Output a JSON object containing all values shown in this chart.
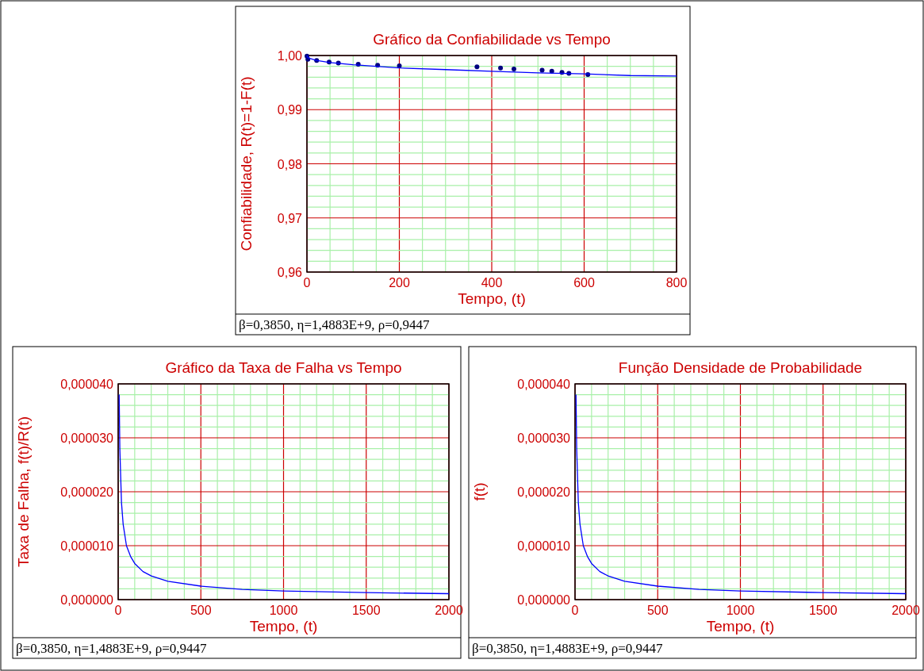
{
  "chart_data": [
    {
      "type": "scatter",
      "title": "Gráfico da Confiabilidade vs Tempo",
      "xlabel": "Tempo, (t)",
      "ylabel": "Confiabilidade, R(t)=1-F(t)",
      "annotations": [
        "β=0,3850, η=1,4883E+9, ρ=0,9447"
      ],
      "grid": true,
      "xlim": [
        0,
        800
      ],
      "ylim": [
        0.96,
        1
      ],
      "xticks": [
        0,
        {
          "value": 50,
          "label": null
        },
        {
          "value": 100,
          "label": null
        },
        {
          "value": 150,
          "label": null
        },
        200,
        {
          "value": 250,
          "label": null
        },
        {
          "value": 300,
          "label": null
        },
        {
          "value": 350,
          "label": null
        },
        400,
        {
          "value": 450,
          "label": null
        },
        {
          "value": 500,
          "label": null
        },
        {
          "value": 550,
          "label": null
        },
        600,
        {
          "value": 650,
          "label": null
        },
        {
          "value": 700,
          "label": null
        },
        {
          "value": 750,
          "label": null
        },
        800
      ],
      "yticks": [
        {
          "value": 0.96,
          "label": "0,96"
        },
        {
          "value": 0.962,
          "label": null
        },
        {
          "value": 0.964,
          "label": null
        },
        {
          "value": 0.966,
          "label": null
        },
        {
          "value": 0.968,
          "label": null
        },
        {
          "value": 0.97,
          "label": "0,97"
        },
        {
          "value": 0.972,
          "label": null
        },
        {
          "value": 0.974,
          "label": null
        },
        {
          "value": 0.976,
          "label": null
        },
        {
          "value": 0.978,
          "label": null
        },
        {
          "value": 0.98,
          "label": "0,98"
        },
        {
          "value": 0.982,
          "label": null
        },
        {
          "value": 0.984,
          "label": null
        },
        {
          "value": 0.986,
          "label": null
        },
        {
          "value": 0.988,
          "label": null
        },
        {
          "value": 0.99,
          "label": "0,99"
        },
        {
          "value": 0.992,
          "label": null
        },
        {
          "value": 0.994,
          "label": null
        },
        {
          "value": 0.996,
          "label": null
        },
        {
          "value": 0.998,
          "label": null
        },
        {
          "value": 1,
          "label": "1,00"
        }
      ],
      "series": [
        {
          "marker": "circle",
          "color": "#000080",
          "x": [
            0,
            2,
            21,
            48,
            68,
            111,
            153,
            200,
            368,
            419,
            448,
            509,
            530,
            552,
            567,
            608
          ],
          "values": [
            0.9999,
            0.9993,
            0.9991,
            0.9988,
            0.9986,
            0.9984,
            0.9982,
            0.9981,
            0.9979,
            0.9977,
            0.9975,
            0.9973,
            0.9971,
            0.9969,
            0.9967,
            0.9965
          ]
        },
        {
          "type": "line",
          "color": "#0000ff",
          "x": [
            0,
            1,
            5,
            20,
            50,
            100,
            200,
            300,
            400,
            500,
            600,
            700,
            800
          ],
          "values": [
            1,
            0.9997,
            0.9995,
            0.9991,
            0.9987,
            0.9983,
            0.9977,
            0.9974,
            0.9971,
            0.9968,
            0.9966,
            0.9963,
            0.9962
          ]
        }
      ]
    },
    {
      "type": "line",
      "title": "Gráfico da Taxa de Falha vs Tempo",
      "xlabel": "Tempo, (t)",
      "ylabel": "Taxa de Falha,  f(t)/R(t)",
      "annotations": [
        "β=0,3850, η=1,4883E+9, ρ=0,9447"
      ],
      "grid": true,
      "xlim": [
        0,
        2000
      ],
      "ylim": [
        0,
        4e-05
      ],
      "xticks": [
        0,
        {
          "value": 100,
          "label": null
        },
        {
          "value": 200,
          "label": null
        },
        {
          "value": 300,
          "label": null
        },
        {
          "value": 400,
          "label": null
        },
        500,
        {
          "value": 600,
          "label": null
        },
        {
          "value": 700,
          "label": null
        },
        {
          "value": 800,
          "label": null
        },
        {
          "value": 900,
          "label": null
        },
        1000,
        {
          "value": 1100,
          "label": null
        },
        {
          "value": 1200,
          "label": null
        },
        {
          "value": 1300,
          "label": null
        },
        {
          "value": 1400,
          "label": null
        },
        1500,
        {
          "value": 1600,
          "label": null
        },
        {
          "value": 1700,
          "label": null
        },
        {
          "value": 1800,
          "label": null
        },
        {
          "value": 1900,
          "label": null
        },
        2000
      ],
      "yticks": [
        {
          "value": 0,
          "label": "0,000000"
        },
        {
          "value": 2e-06,
          "label": null
        },
        {
          "value": 4e-06,
          "label": null
        },
        {
          "value": 6e-06,
          "label": null
        },
        {
          "value": 8e-06,
          "label": null
        },
        {
          "value": 1e-05,
          "label": "0,000010"
        },
        {
          "value": 1.2e-05,
          "label": null
        },
        {
          "value": 1.4e-05,
          "label": null
        },
        {
          "value": 1.6e-05,
          "label": null
        },
        {
          "value": 1.8e-05,
          "label": null
        },
        {
          "value": 2e-05,
          "label": "0,000020"
        },
        {
          "value": 2.2e-05,
          "label": null
        },
        {
          "value": 2.4e-05,
          "label": null
        },
        {
          "value": 2.6e-05,
          "label": null
        },
        {
          "value": 2.8e-05,
          "label": null
        },
        {
          "value": 3e-05,
          "label": "0,000030"
        },
        {
          "value": 3.2e-05,
          "label": null
        },
        {
          "value": 3.4e-05,
          "label": null
        },
        {
          "value": 3.6e-05,
          "label": null
        },
        {
          "value": 3.8e-05,
          "label": null
        },
        {
          "value": 4e-05,
          "label": "0,000040"
        }
      ],
      "series": [
        {
          "color": "#0000ff",
          "x": [
            6,
            10,
            20,
            30,
            50,
            75,
            100,
            150,
            200,
            300,
            500,
            750,
            1000,
            1500,
            2000
          ],
          "values": [
            3.8e-05,
            2.8e-05,
            1.8e-05,
            1.4e-05,
            1e-05,
            8e-06,
            6.7e-06,
            5.2e-06,
            4.4e-06,
            3.4e-06,
            2.5e-06,
            1.9e-06,
            1.6e-06,
            1.3e-06,
            1.1e-06
          ]
        }
      ]
    },
    {
      "type": "line",
      "title": "Função Densidade de Probabilidade",
      "xlabel": "Tempo, (t)",
      "ylabel": "f(t)",
      "annotations": [
        "β=0,3850, η=1,4883E+9, ρ=0,9447"
      ],
      "grid": true,
      "xlim": [
        0,
        2000
      ],
      "ylim": [
        0,
        4e-05
      ],
      "xticks": [
        0,
        {
          "value": 100,
          "label": null
        },
        {
          "value": 200,
          "label": null
        },
        {
          "value": 300,
          "label": null
        },
        {
          "value": 400,
          "label": null
        },
        500,
        {
          "value": 600,
          "label": null
        },
        {
          "value": 700,
          "label": null
        },
        {
          "value": 800,
          "label": null
        },
        {
          "value": 900,
          "label": null
        },
        1000,
        {
          "value": 1100,
          "label": null
        },
        {
          "value": 1200,
          "label": null
        },
        {
          "value": 1300,
          "label": null
        },
        {
          "value": 1400,
          "label": null
        },
        1500,
        {
          "value": 1600,
          "label": null
        },
        {
          "value": 1700,
          "label": null
        },
        {
          "value": 1800,
          "label": null
        },
        {
          "value": 1900,
          "label": null
        },
        2000
      ],
      "yticks": [
        {
          "value": 0,
          "label": "0,000000"
        },
        {
          "value": 2e-06,
          "label": null
        },
        {
          "value": 4e-06,
          "label": null
        },
        {
          "value": 6e-06,
          "label": null
        },
        {
          "value": 8e-06,
          "label": null
        },
        {
          "value": 1e-05,
          "label": "0,000010"
        },
        {
          "value": 1.2e-05,
          "label": null
        },
        {
          "value": 1.4e-05,
          "label": null
        },
        {
          "value": 1.6e-05,
          "label": null
        },
        {
          "value": 1.8e-05,
          "label": null
        },
        {
          "value": 2e-05,
          "label": "0,000020"
        },
        {
          "value": 2.2e-05,
          "label": null
        },
        {
          "value": 2.4e-05,
          "label": null
        },
        {
          "value": 2.6e-05,
          "label": null
        },
        {
          "value": 2.8e-05,
          "label": null
        },
        {
          "value": 3e-05,
          "label": "0,000030"
        },
        {
          "value": 3.2e-05,
          "label": null
        },
        {
          "value": 3.4e-05,
          "label": null
        },
        {
          "value": 3.6e-05,
          "label": null
        },
        {
          "value": 3.8e-05,
          "label": null
        },
        {
          "value": 4e-05,
          "label": "0,000040"
        }
      ],
      "series": [
        {
          "color": "#0000ff",
          "x": [
            6,
            10,
            20,
            30,
            50,
            75,
            100,
            150,
            200,
            300,
            500,
            750,
            1000,
            1500,
            2000
          ],
          "values": [
            3.8e-05,
            2.8e-05,
            1.8e-05,
            1.4e-05,
            1e-05,
            8e-06,
            6.7e-06,
            5.2e-06,
            4.4e-06,
            3.4e-06,
            2.5e-06,
            1.9e-06,
            1.6e-06,
            1.3e-06,
            1.1e-06
          ]
        }
      ]
    }
  ]
}
